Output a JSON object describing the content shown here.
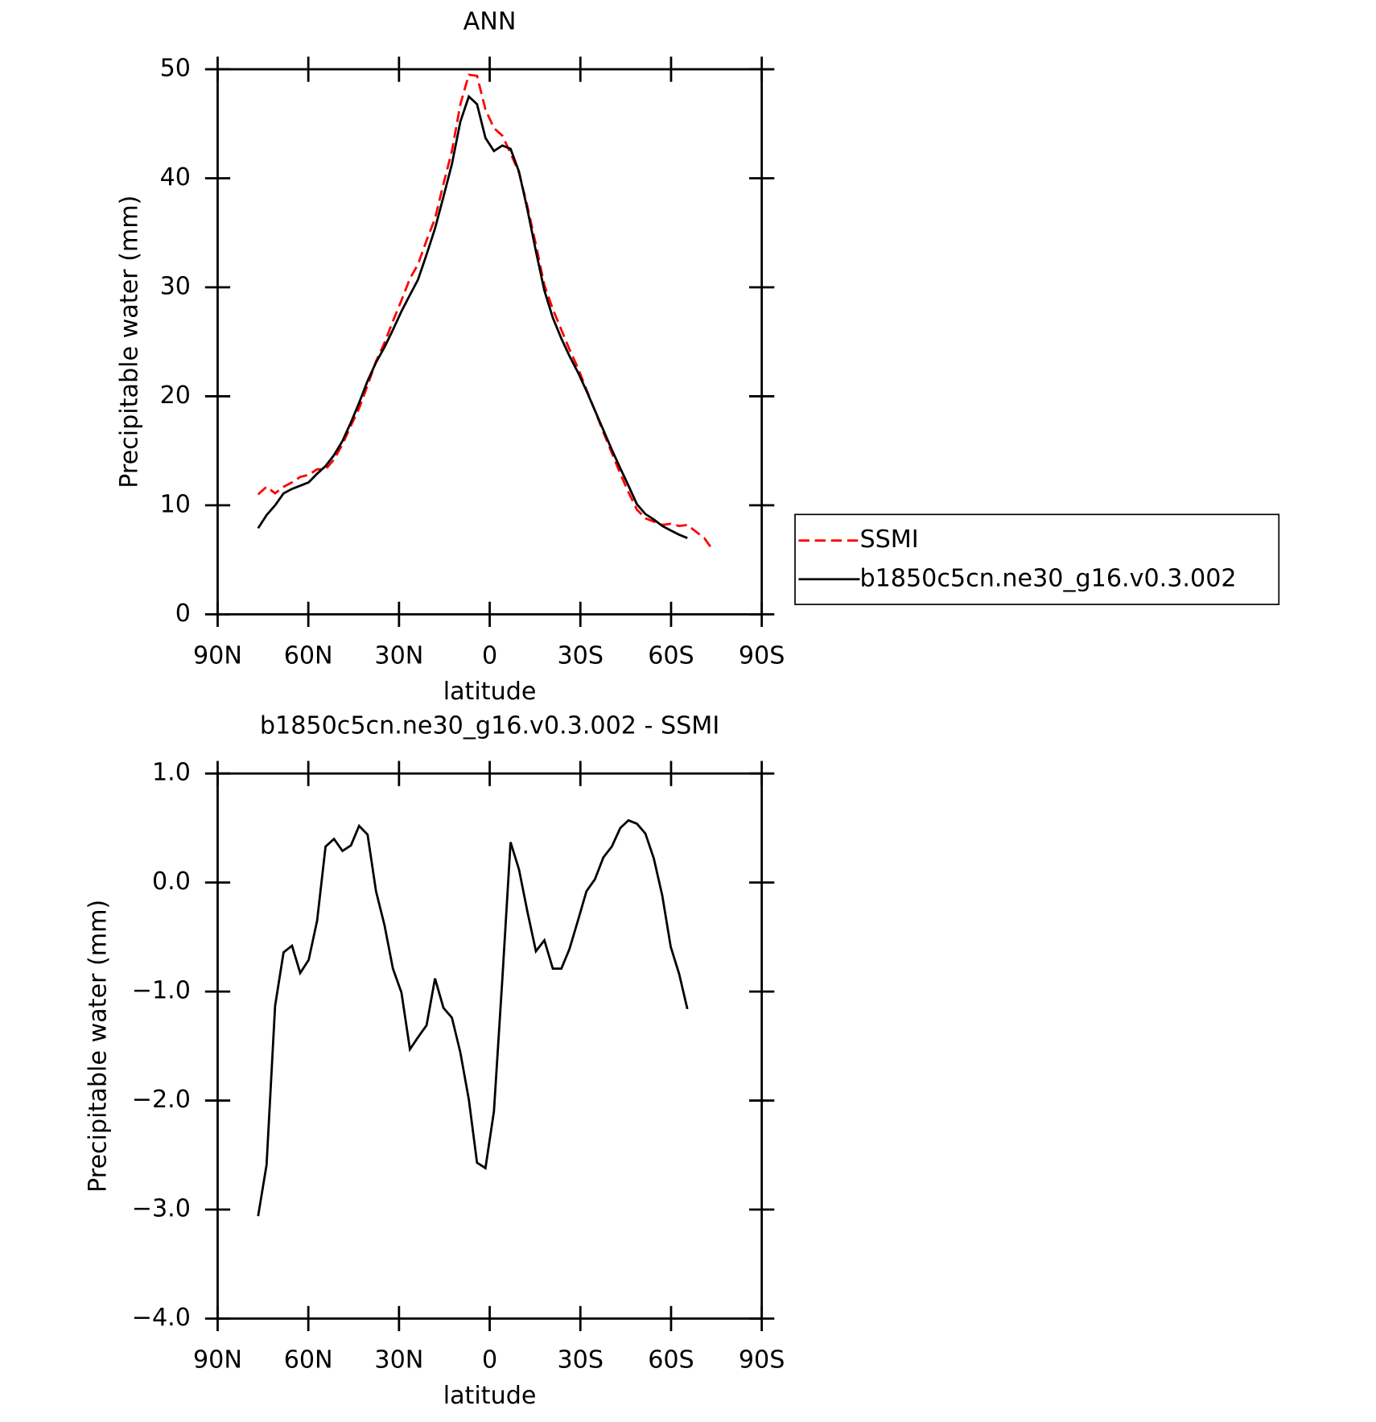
{
  "chart_data": [
    {
      "type": "line",
      "title": "ANN",
      "xlabel": "latitude",
      "ylabel": "Precipitable water (mm)",
      "x": [
        76.6,
        73.8,
        71.0,
        68.2,
        65.4,
        62.7,
        59.9,
        57.1,
        54.3,
        51.5,
        48.7,
        45.9,
        43.2,
        40.4,
        37.6,
        34.8,
        32.0,
        29.2,
        26.4,
        23.7,
        20.9,
        18.1,
        15.3,
        12.5,
        9.7,
        6.9,
        4.2,
        1.4,
        -1.4,
        -4.2,
        -6.9,
        -9.7,
        -12.5,
        -15.3,
        -18.1,
        -20.9,
        -23.7,
        -26.4,
        -29.2,
        -32.0,
        -34.8,
        -37.6,
        -40.4,
        -43.2,
        -45.9,
        -48.7,
        -51.5,
        -54.3,
        -57.1,
        -59.9,
        -62.7,
        -65.4,
        -68.2,
        -71.0,
        -73.8
      ],
      "series": [
        {
          "name": "SSMI",
          "color": "#ff0000",
          "linestyle": "dashed",
          "values": [
            11.0,
            11.7,
            11.1,
            11.7,
            12.1,
            12.6,
            12.8,
            13.3,
            13.3,
            14.2,
            15.6,
            17.3,
            18.9,
            21.0,
            23.2,
            24.9,
            26.9,
            28.8,
            30.8,
            32.1,
            34.3,
            36.3,
            39.5,
            42.5,
            46.8,
            49.5,
            49.4,
            46.3,
            44.6,
            43.9,
            42.3,
            40.5,
            37.4,
            33.9,
            30.2,
            28.0,
            26.1,
            24.3,
            22.6,
            20.6,
            18.7,
            16.7,
            14.8,
            12.9,
            11.2,
            9.6,
            8.8,
            8.5,
            8.2,
            8.3,
            8.1,
            8.2,
            7.6,
            7.0,
            5.9
          ]
        },
        {
          "name": "b1850c5cn.ne30_g16.v0.3.002",
          "color": "#000000",
          "linestyle": "solid",
          "values": [
            7.9,
            9.1,
            10.0,
            11.1,
            11.5,
            11.8,
            12.1,
            12.9,
            13.6,
            14.6,
            15.9,
            17.6,
            19.4,
            21.4,
            23.1,
            24.5,
            26.1,
            27.8,
            29.3,
            30.7,
            33.0,
            35.4,
            38.3,
            41.3,
            45.2,
            47.5,
            46.8,
            43.7,
            42.5,
            43.0,
            42.7,
            40.6,
            37.1,
            33.3,
            29.7,
            27.2,
            25.3,
            23.7,
            22.2,
            20.5,
            18.7,
            16.9,
            15.1,
            13.4,
            11.8,
            10.1,
            9.2,
            8.7,
            8.1,
            7.7,
            7.3,
            7.0,
            null,
            null,
            null
          ]
        }
      ],
      "xlim": [
        90,
        -90
      ],
      "xticks": [
        {
          "value": 90,
          "label": "90N"
        },
        {
          "value": 60,
          "label": "60N"
        },
        {
          "value": 30,
          "label": "30N"
        },
        0,
        {
          "value": -30,
          "label": "30S"
        },
        {
          "value": -60,
          "label": "60S"
        },
        {
          "value": -90,
          "label": "90S"
        }
      ],
      "ylim": [
        0,
        50
      ],
      "yticks": [
        0,
        10,
        20,
        30,
        40,
        50
      ],
      "legend": "right"
    },
    {
      "type": "line",
      "title": "b1850c5cn.ne30_g16.v0.3.002 - SSMI",
      "xlabel": "latitude",
      "ylabel": "Precipitable water (mm)",
      "x": [
        76.6,
        73.8,
        71.0,
        68.2,
        65.4,
        62.7,
        59.9,
        57.1,
        54.3,
        51.5,
        48.7,
        45.9,
        43.2,
        40.4,
        37.6,
        34.8,
        32.0,
        29.2,
        26.4,
        23.7,
        20.9,
        18.1,
        15.3,
        12.5,
        9.7,
        6.9,
        4.2,
        1.4,
        -1.4,
        -4.2,
        -6.9,
        -9.7,
        -12.5,
        -15.3,
        -18.1,
        -20.9,
        -23.7,
        -26.4,
        -29.2,
        -32.0,
        -34.8,
        -37.6,
        -40.4,
        -43.2,
        -45.9,
        -48.7,
        -51.5,
        -54.3,
        -57.1,
        -59.9,
        -62.7,
        -65.4
      ],
      "series": [
        {
          "color": "#000000",
          "linestyle": "solid",
          "values": [
            -3.06,
            -2.59,
            -1.13,
            -0.64,
            -0.58,
            -0.83,
            -0.71,
            -0.35,
            0.33,
            0.4,
            0.29,
            0.34,
            0.52,
            0.44,
            -0.08,
            -0.39,
            -0.79,
            -1.01,
            -1.53,
            -1.42,
            -1.31,
            -0.88,
            -1.15,
            -1.24,
            -1.56,
            -1.99,
            -2.57,
            -2.62,
            -2.1,
            -0.88,
            0.37,
            0.12,
            -0.27,
            -0.63,
            -0.53,
            -0.79,
            -0.79,
            -0.61,
            -0.35,
            -0.08,
            0.03,
            0.23,
            0.33,
            0.5,
            0.57,
            0.54,
            0.45,
            0.22,
            -0.12,
            -0.59,
            -0.84,
            -1.16
          ]
        }
      ],
      "xlim": [
        90,
        -90
      ],
      "xticks": [
        {
          "value": 90,
          "label": "90N"
        },
        {
          "value": 60,
          "label": "60N"
        },
        {
          "value": 30,
          "label": "30N"
        },
        0,
        {
          "value": -30,
          "label": "30S"
        },
        {
          "value": -60,
          "label": "60S"
        },
        {
          "value": -90,
          "label": "90S"
        }
      ],
      "ylim": [
        -4,
        1
      ],
      "yticks": [
        {
          "value": -4,
          "label": "−4.0"
        },
        {
          "value": -3,
          "label": "−3.0"
        },
        {
          "value": -2,
          "label": "−2.0"
        },
        {
          "value": -1,
          "label": "−1.0"
        },
        {
          "value": 0,
          "label": "0.0"
        },
        {
          "value": 1,
          "label": "1.0"
        }
      ]
    }
  ]
}
